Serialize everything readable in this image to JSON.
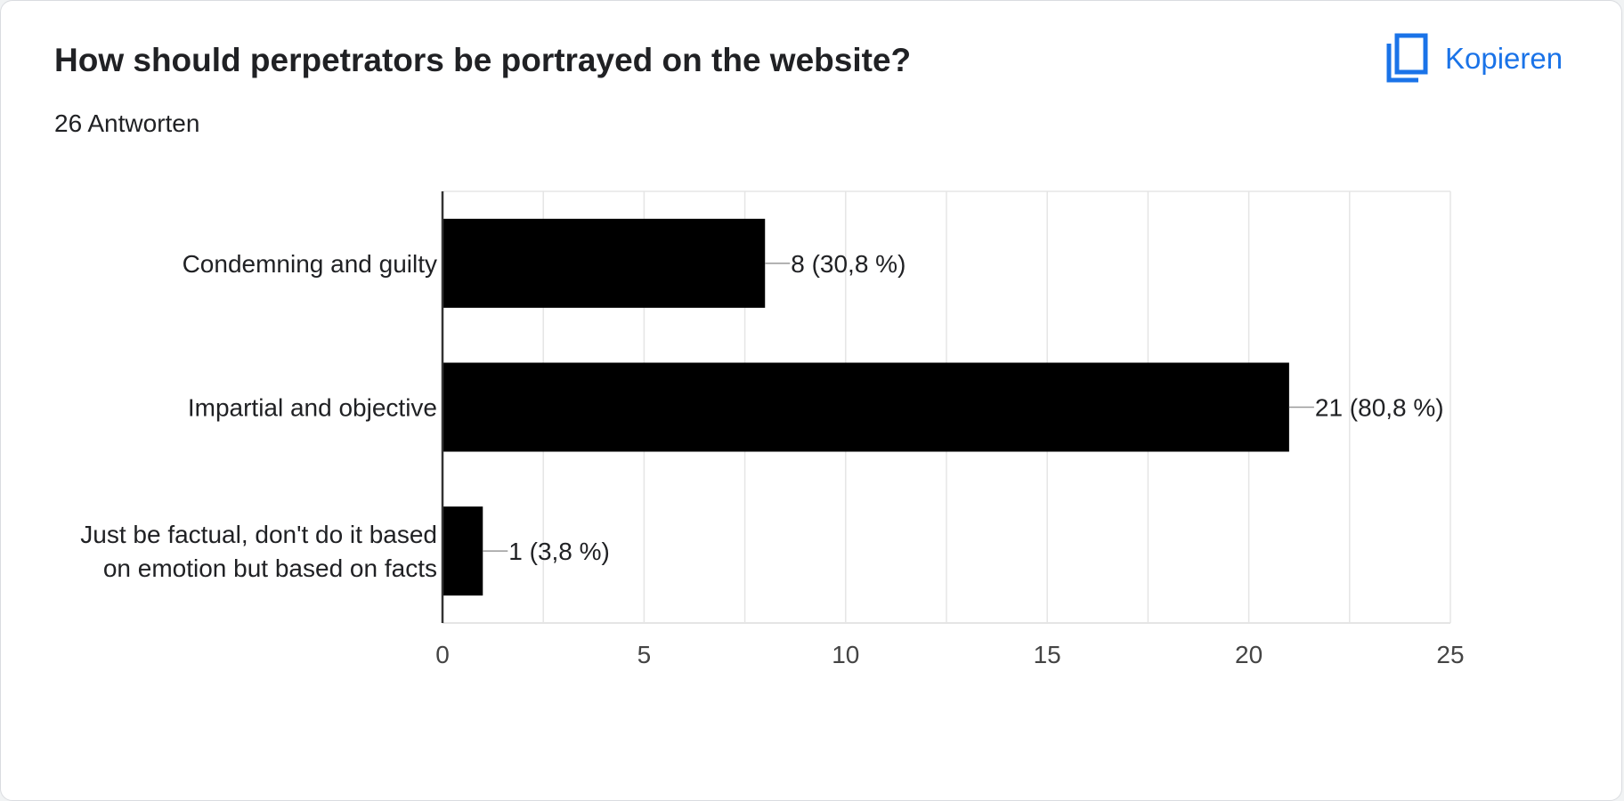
{
  "question": {
    "title": "How should perpetrators be portrayed on the website?",
    "responses": "26 Antworten"
  },
  "toolbar": {
    "copy_label": "Kopieren",
    "copy_icon": "copy-icon"
  },
  "colors": {
    "bar": "#000000",
    "link": "#1a73e8",
    "grid": "#e5e5e5",
    "text": "#202124",
    "tick": "#444444"
  },
  "chart_data": {
    "type": "bar",
    "orientation": "horizontal",
    "categories": [
      [
        "Condemning and guilty"
      ],
      [
        "Impartial and objective"
      ],
      [
        "Just be factual, don't do it based",
        "on emotion but based on facts"
      ]
    ],
    "values": [
      8,
      21,
      1
    ],
    "data_labels": [
      "8 (30,8 %)",
      "21 (80,8 %)",
      "1 (3,8 %)"
    ],
    "xlim": [
      0,
      25
    ],
    "xticks": [
      0,
      5,
      10,
      15,
      20,
      25
    ],
    "grid": true
  }
}
